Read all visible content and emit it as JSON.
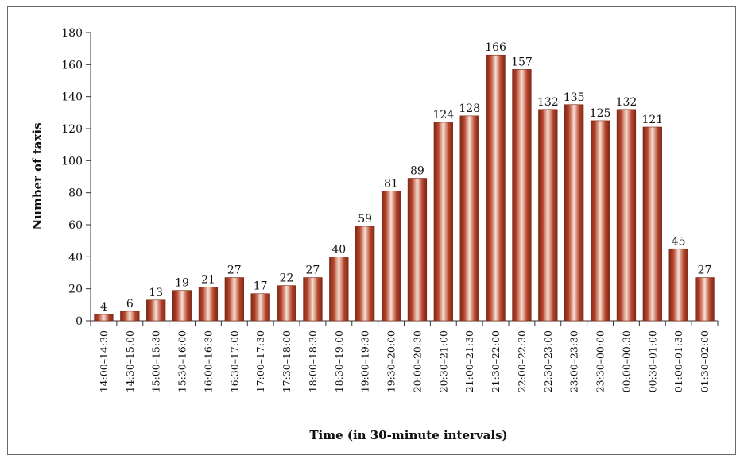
{
  "chart_data": {
    "type": "bar",
    "title": "",
    "xlabel": "Time (in 30-minute intervals)",
    "ylabel": "Number of taxis",
    "ylim": [
      0,
      180
    ],
    "yticks": [
      0,
      20,
      40,
      60,
      80,
      100,
      120,
      140,
      160,
      180
    ],
    "grid": false,
    "legend": "none",
    "bar_color": "#b5432a",
    "categories": [
      "14:00–14:30",
      "14:30–15:00",
      "15:00–15:30",
      "15:30–16:00",
      "16:00–16:30",
      "16:30–17:00",
      "17:00–17:30",
      "17:30–18:00",
      "18:00–18:30",
      "18:30–19:00",
      "19:00–19:30",
      "19:30–20:00",
      "20:00–20:30",
      "20:30–21:00",
      "21:00–21:30",
      "21:30–22:00",
      "22:00–22:30",
      "22:30–23:00",
      "23:00–23:30",
      "23:30–00:00",
      "00:00–00:30",
      "00:30–01:00",
      "01:00–01:30",
      "01:30–02:00"
    ],
    "values": [
      4,
      6,
      13,
      19,
      21,
      27,
      17,
      22,
      27,
      40,
      59,
      81,
      89,
      124,
      128,
      166,
      157,
      132,
      135,
      125,
      132,
      121,
      45,
      27
    ]
  }
}
